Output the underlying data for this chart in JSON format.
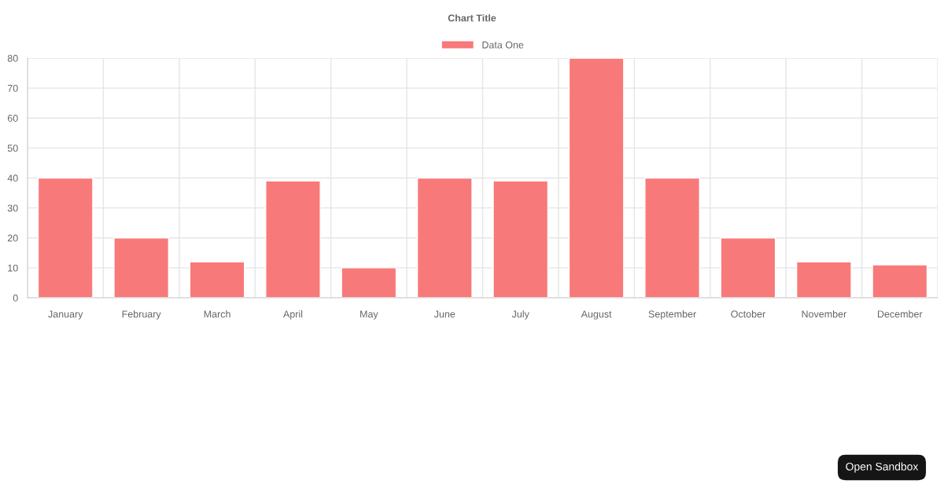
{
  "chart_data": {
    "type": "bar",
    "title": "Chart Title",
    "categories": [
      "January",
      "February",
      "March",
      "April",
      "May",
      "June",
      "July",
      "August",
      "September",
      "October",
      "November",
      "December"
    ],
    "series": [
      {
        "name": "Data One",
        "color": "#f87979",
        "values": [
          40,
          20,
          12,
          39,
          10,
          40,
          39,
          80,
          40,
          20,
          12,
          11
        ]
      }
    ],
    "ylim": [
      0,
      80
    ],
    "yticks": [
      0,
      10,
      20,
      30,
      40,
      50,
      60,
      70,
      80
    ],
    "grid": true,
    "legend": "top",
    "annotations": [
      "Open Sandbox"
    ]
  }
}
